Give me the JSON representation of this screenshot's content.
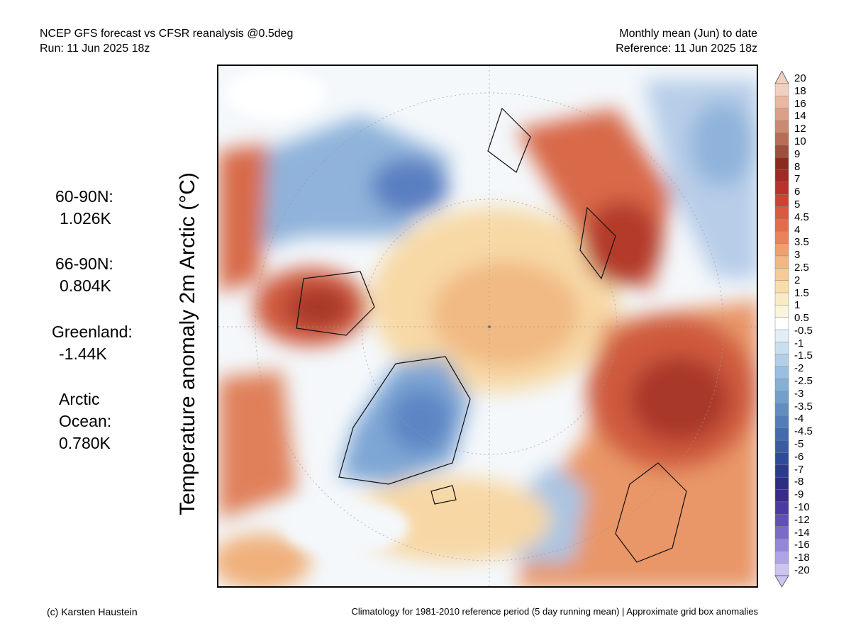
{
  "header": {
    "left_line1": "NCEP GFS forecast vs CFSR reanalysis @0.5deg",
    "left_line2": "Run: 11 Jun 2025 18z",
    "right_line1": "Monthly mean (Jun) to date",
    "right_line2": "Reference: 11 Jun 2025 18z"
  },
  "y_axis_label": "Temperature anomaly 2m Arctic (°C)",
  "stats": [
    {
      "label": "60-90N:",
      "value": "1.026K"
    },
    {
      "label": "66-90N:",
      "value": "0.804K"
    },
    {
      "label": "Greenland:",
      "value": "-1.44K"
    },
    {
      "label_line1": "Arctic",
      "label_line2": "Ocean:",
      "value": "0.780K"
    }
  ],
  "colorbar": {
    "labels": [
      "20",
      "18",
      "16",
      "14",
      "12",
      "10",
      "9",
      "8",
      "7",
      "6",
      "5",
      "4.5",
      "4",
      "3.5",
      "3",
      "2.5",
      "2",
      "1.5",
      "1",
      "0.5",
      "-0.5",
      "-1",
      "-1.5",
      "-2",
      "-2.5",
      "-3",
      "-3.5",
      "-4",
      "-4.5",
      "-5",
      "-6",
      "-7",
      "-8",
      "-9",
      "-10",
      "-12",
      "-14",
      "-16",
      "-18",
      "-20"
    ],
    "colors": [
      "#f2d0c0",
      "#e8b8a2",
      "#dca088",
      "#cd8a70",
      "#b86d55",
      "#9e4f3c",
      "#8c2a20",
      "#a12a22",
      "#b83329",
      "#cb4433",
      "#d85a40",
      "#e26d4c",
      "#e9825b",
      "#eea06f",
      "#f2b883",
      "#f5cc95",
      "#f7dea9",
      "#f9ebc3",
      "#fbf4dd",
      "#ffffff",
      "#e1eef8",
      "#c9dff0",
      "#b1cfe7",
      "#9bbfdf",
      "#86afd6",
      "#729fcc",
      "#618ec2",
      "#527db8",
      "#446cad",
      "#3a5ca3",
      "#2f4a99",
      "#2a3b8c",
      "#2b2d80",
      "#3a2a8a",
      "#4b3aa0",
      "#6150b5",
      "#7a6bc8",
      "#9486d8",
      "#b0a4e6",
      "#cdc4f2"
    ]
  },
  "footer": {
    "left": "(c) Karsten Haustein",
    "right": "Climatology for 1981-2010 reference period (5 day running mean) | Approximate grid box anomalies"
  }
}
